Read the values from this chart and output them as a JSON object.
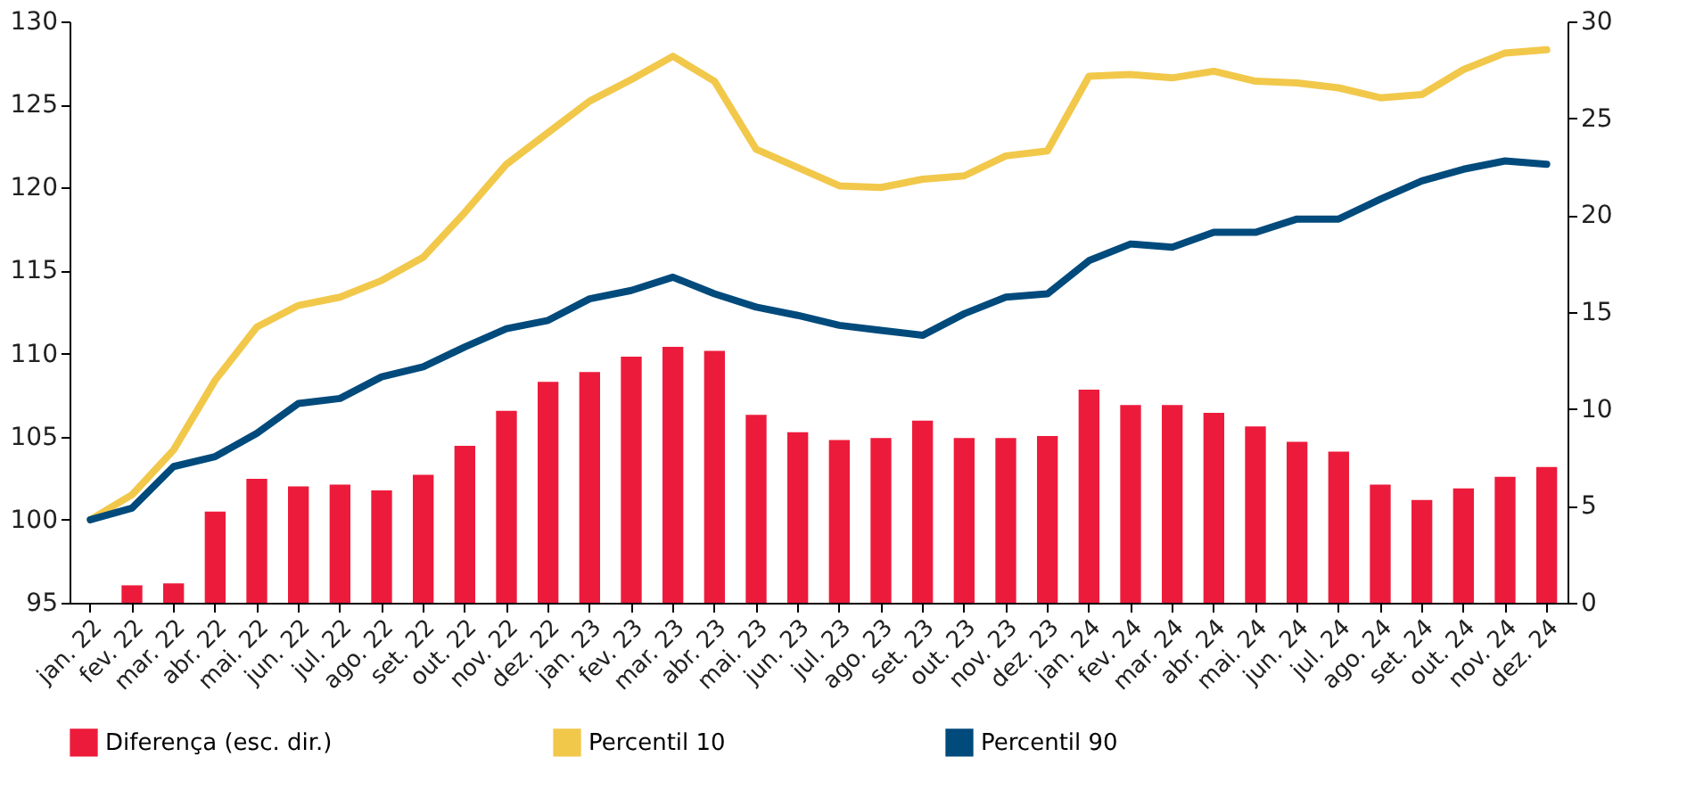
{
  "chart_data": {
    "type": "bar",
    "categories": [
      "jan. 22",
      "fev. 22",
      "mar. 22",
      "abr. 22",
      "mai. 22",
      "jun. 22",
      "jul. 22",
      "ago. 22",
      "set. 22",
      "out. 22",
      "nov. 22",
      "dez. 22",
      "jan. 23",
      "fev. 23",
      "mar. 23",
      "abr. 23",
      "mai. 23",
      "jun. 23",
      "jul. 23",
      "ago. 23",
      "set. 23",
      "out. 23",
      "nov. 23",
      "dez. 23",
      "jan. 24",
      "fev. 24",
      "mar. 24",
      "abr. 24",
      "mai. 24",
      "jun. 24",
      "jul. 24",
      "ago. 24",
      "set. 24",
      "out. 24",
      "nov. 24",
      "dez. 24"
    ],
    "series": [
      {
        "name": "Diferença (esc. dir.)",
        "axis": "y2",
        "color": "#ed1b3b",
        "values": [
          0,
          0.9,
          1.0,
          4.7,
          6.4,
          6.0,
          6.1,
          5.8,
          6.6,
          8.1,
          9.9,
          11.4,
          11.9,
          12.7,
          13.2,
          13.0,
          9.7,
          8.8,
          8.4,
          8.5,
          9.4,
          8.5,
          8.5,
          8.6,
          11.0,
          10.2,
          10.2,
          9.8,
          9.1,
          8.3,
          7.8,
          6.1,
          5.3,
          5.9,
          6.5,
          7.0
        ]
      },
      {
        "name": "Percentil 10",
        "type": "line",
        "color": "#f2c84b",
        "values": [
          100,
          101.5,
          104.2,
          108.4,
          111.6,
          112.9,
          113.4,
          114.4,
          115.8,
          118.5,
          121.4,
          123.3,
          125.2,
          126.5,
          127.9,
          126.4,
          122.3,
          121.2,
          120.1,
          120.0,
          120.5,
          120.7,
          121.9,
          122.2,
          126.7,
          126.8,
          126.6,
          127.0,
          126.4,
          126.3,
          126.0,
          125.4,
          125.6,
          127.1,
          128.1,
          128.3
        ]
      },
      {
        "name": "Percentil 90",
        "type": "line",
        "color": "#004a7c",
        "values": [
          100,
          100.7,
          103.2,
          103.8,
          105.2,
          107.0,
          107.3,
          108.6,
          109.2,
          110.4,
          111.5,
          112.0,
          113.3,
          113.8,
          114.6,
          113.6,
          112.8,
          112.3,
          111.7,
          111.4,
          111.1,
          112.4,
          113.4,
          113.6,
          115.6,
          116.6,
          116.4,
          117.3,
          117.3,
          118.1,
          118.1,
          119.3,
          120.4,
          121.1,
          121.6,
          121.4
        ]
      }
    ],
    "ylim": [
      95,
      130
    ],
    "yticks": [
      95,
      100,
      105,
      110,
      115,
      120,
      125,
      130
    ],
    "y2lim": [
      0,
      30
    ],
    "y2ticks": [
      0,
      5,
      10,
      15,
      20,
      25,
      30
    ],
    "grid": false,
    "legend": "bottom"
  }
}
